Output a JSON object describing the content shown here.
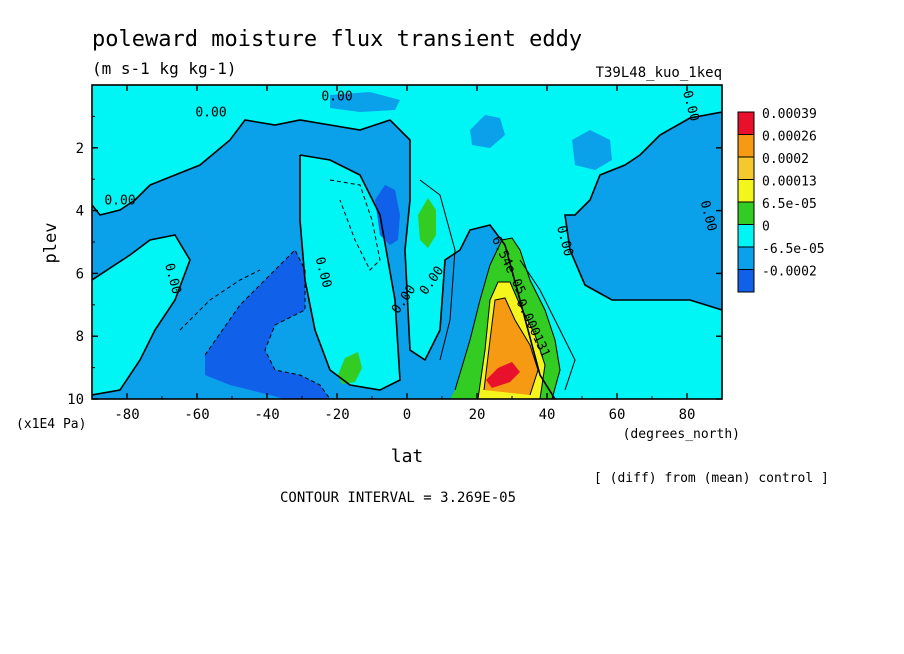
{
  "chart_data": {
    "type": "heatmap",
    "title": "poleward moisture flux transient eddy",
    "units": "(m s-1 kg kg-1)",
    "model_label": "T39L48_kuo_1keq",
    "xlabel": "lat",
    "xunit": "(degrees_north)",
    "ylabel": "plev",
    "yunit": "(x1E4 Pa)",
    "xlim": [
      -90,
      90
    ],
    "ylim": [
      10,
      0
    ],
    "x_ticks": [
      "-80",
      "-60",
      "-40",
      "-20",
      "0",
      "20",
      "40",
      "60",
      "80"
    ],
    "x_tick_values": [
      -80,
      -60,
      -40,
      -20,
      0,
      20,
      40,
      60,
      80
    ],
    "y_ticks": [
      "2",
      "4",
      "6",
      "8",
      "10"
    ],
    "y_tick_values": [
      2,
      4,
      6,
      8,
      10
    ],
    "note": "[ (diff) from (mean) control ]",
    "contour_interval": "CONTOUR INTERVAL = 3.269E-05",
    "contour_labels": [
      {
        "text": "0.00",
        "lat": -56,
        "plev": 1.0
      },
      {
        "text": "0.00",
        "lat": -20,
        "plev": 0.5
      },
      {
        "text": "0.00",
        "lat": 55,
        "plev": 0.0
      },
      {
        "text": "0.00",
        "lat": -82,
        "plev": 3.8
      },
      {
        "text": "0.00",
        "lat": -68,
        "plev": 6.2
      },
      {
        "text": "0.00",
        "lat": -25,
        "plev": 6.0
      },
      {
        "text": "0.00",
        "lat": 0,
        "plev": 6.9
      },
      {
        "text": "0.00",
        "lat": 8,
        "plev": 6.3
      },
      {
        "text": "0.00",
        "lat": 44,
        "plev": 5.0
      },
      {
        "text": "0.00",
        "lat": 80,
        "plev": 0.7
      },
      {
        "text": "0.00",
        "lat": 85,
        "plev": 4.2
      },
      {
        "text": "6.54e-05",
        "lat": 28,
        "plev": 5.8
      },
      {
        "text": "0.000131",
        "lat": 35,
        "plev": 7.8
      }
    ],
    "colorbar": [
      {
        "label": "0.00039",
        "color": "#e8102a"
      },
      {
        "label": "0.00026",
        "color": "#f59a12"
      },
      {
        "label": "0.0002",
        "color": "#f5c830"
      },
      {
        "label": "0.00013",
        "color": "#f5f51e"
      },
      {
        "label": "6.5e-05",
        "color": "#33cc22"
      },
      {
        "label": "0",
        "color": "#00f5f5"
      },
      {
        "label": "-6.5e-05",
        "color": "#0aa0ea"
      },
      {
        "label": "-0.0002",
        "color": "#1060ea"
      }
    ],
    "field_levels": [
      {
        "color": "#0aa0ea",
        "desc": "background below 0"
      },
      {
        "color": "#00f5f5",
        "desc": "0 to 6.5e-05"
      },
      {
        "color": "#1060ea",
        "desc": "-6.5e-05 and below"
      },
      {
        "color": "#33cc22",
        "desc": "6.5e-05 to 0.00013"
      },
      {
        "color": "#f5f51e",
        "desc": "0.00013 to 0.0002"
      },
      {
        "color": "#f59a12",
        "desc": "0.0002 to 0.00039"
      },
      {
        "color": "#e8102a",
        "desc": "0.00039 and above"
      }
    ]
  }
}
